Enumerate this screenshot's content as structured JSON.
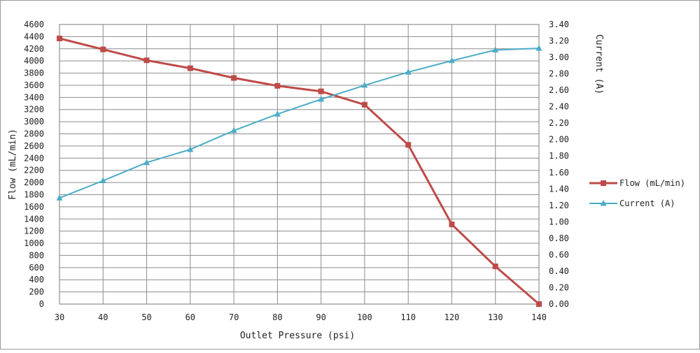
{
  "chart_data": {
    "type": "line",
    "x": [
      30,
      40,
      50,
      60,
      70,
      80,
      90,
      100,
      110,
      120,
      130,
      140
    ],
    "xlabel": "Outlet Pressure (psi)",
    "ylabel": "Flow (mL/min)",
    "y2label": "Current (A)",
    "xlim": [
      30,
      140
    ],
    "ylim": [
      0,
      4600
    ],
    "y2lim": [
      0,
      3.4
    ],
    "xticks": [
      "30",
      "40",
      "50",
      "60",
      "70",
      "80",
      "90",
      "100",
      "110",
      "120",
      "130",
      "140"
    ],
    "yticks": [
      "0",
      "200",
      "400",
      "600",
      "800",
      "1000",
      "1200",
      "1400",
      "1600",
      "1800",
      "2000",
      "2200",
      "2400",
      "2600",
      "2800",
      "3000",
      "3200",
      "3400",
      "3600",
      "3800",
      "4000",
      "4200",
      "4400",
      "4600"
    ],
    "y2ticks": [
      "0.00",
      "0.20",
      "0.40",
      "0.60",
      "0.80",
      "1.00",
      "1.20",
      "1.40",
      "1.60",
      "1.80",
      "2.00",
      "2.20",
      "2.40",
      "2.60",
      "2.80",
      "3.00",
      "3.20",
      "3.40"
    ],
    "grid": true,
    "legend_position": "right",
    "series": [
      {
        "name": "Flow (mL/min)",
        "axis": "left",
        "color": "#be4b48",
        "marker": "square",
        "values": [
          4370,
          4190,
          4010,
          3880,
          3720,
          3590,
          3500,
          3280,
          2620,
          1310,
          620,
          0
        ]
      },
      {
        "name": "Current (A)",
        "axis": "right",
        "color": "#4bacc6",
        "marker": "triangle",
        "values": [
          1.29,
          1.5,
          1.72,
          1.88,
          2.11,
          2.31,
          2.49,
          2.66,
          2.82,
          2.96,
          3.09,
          3.11
        ]
      }
    ]
  }
}
